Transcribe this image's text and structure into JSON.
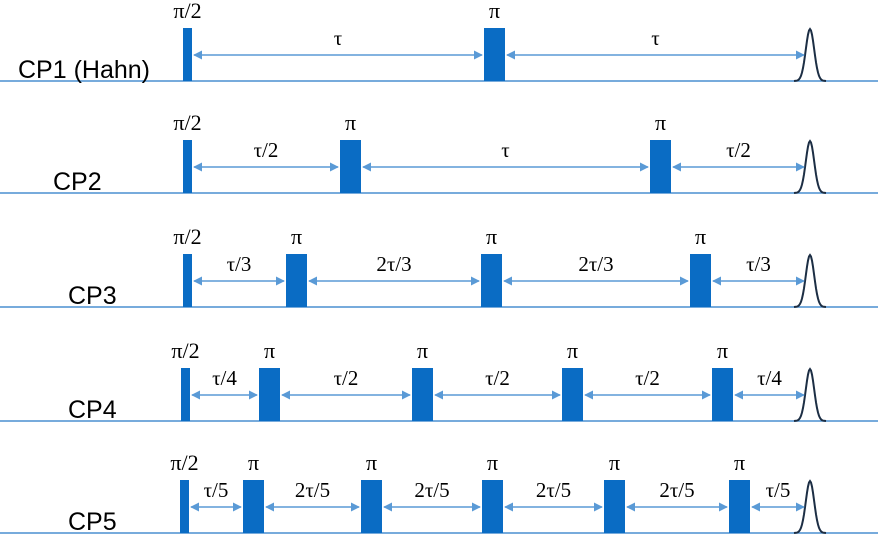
{
  "colors": {
    "pulse": "#0a6cc4",
    "baseline": "#4a8fd0",
    "arrow": "#5a9ad6",
    "echo": "#1c2e44"
  },
  "sequences": [
    {
      "label": "CP1 (Hahn)",
      "pulses": [
        "π/2",
        "π"
      ],
      "intervals": [
        "τ",
        "τ"
      ]
    },
    {
      "label": "CP2",
      "pulses": [
        "π/2",
        "π",
        "π"
      ],
      "intervals": [
        "τ/2",
        "τ",
        "τ/2"
      ]
    },
    {
      "label": "CP3",
      "pulses": [
        "π/2",
        "π",
        "π",
        "π"
      ],
      "intervals": [
        "τ/3",
        "2τ/3",
        "2τ/3",
        "τ/3"
      ]
    },
    {
      "label": "CP4",
      "pulses": [
        "π/2",
        "π",
        "π",
        "π",
        "π"
      ],
      "intervals": [
        "τ/4",
        "τ/2",
        "τ/2",
        "τ/2",
        "τ/4"
      ]
    },
    {
      "label": "CP5",
      "pulses": [
        "π/2",
        "π",
        "π",
        "π",
        "π",
        "π"
      ],
      "intervals": [
        "τ/5",
        "2τ/5",
        "2τ/5",
        "2τ/5",
        "2τ/5",
        "τ/5"
      ]
    }
  ]
}
